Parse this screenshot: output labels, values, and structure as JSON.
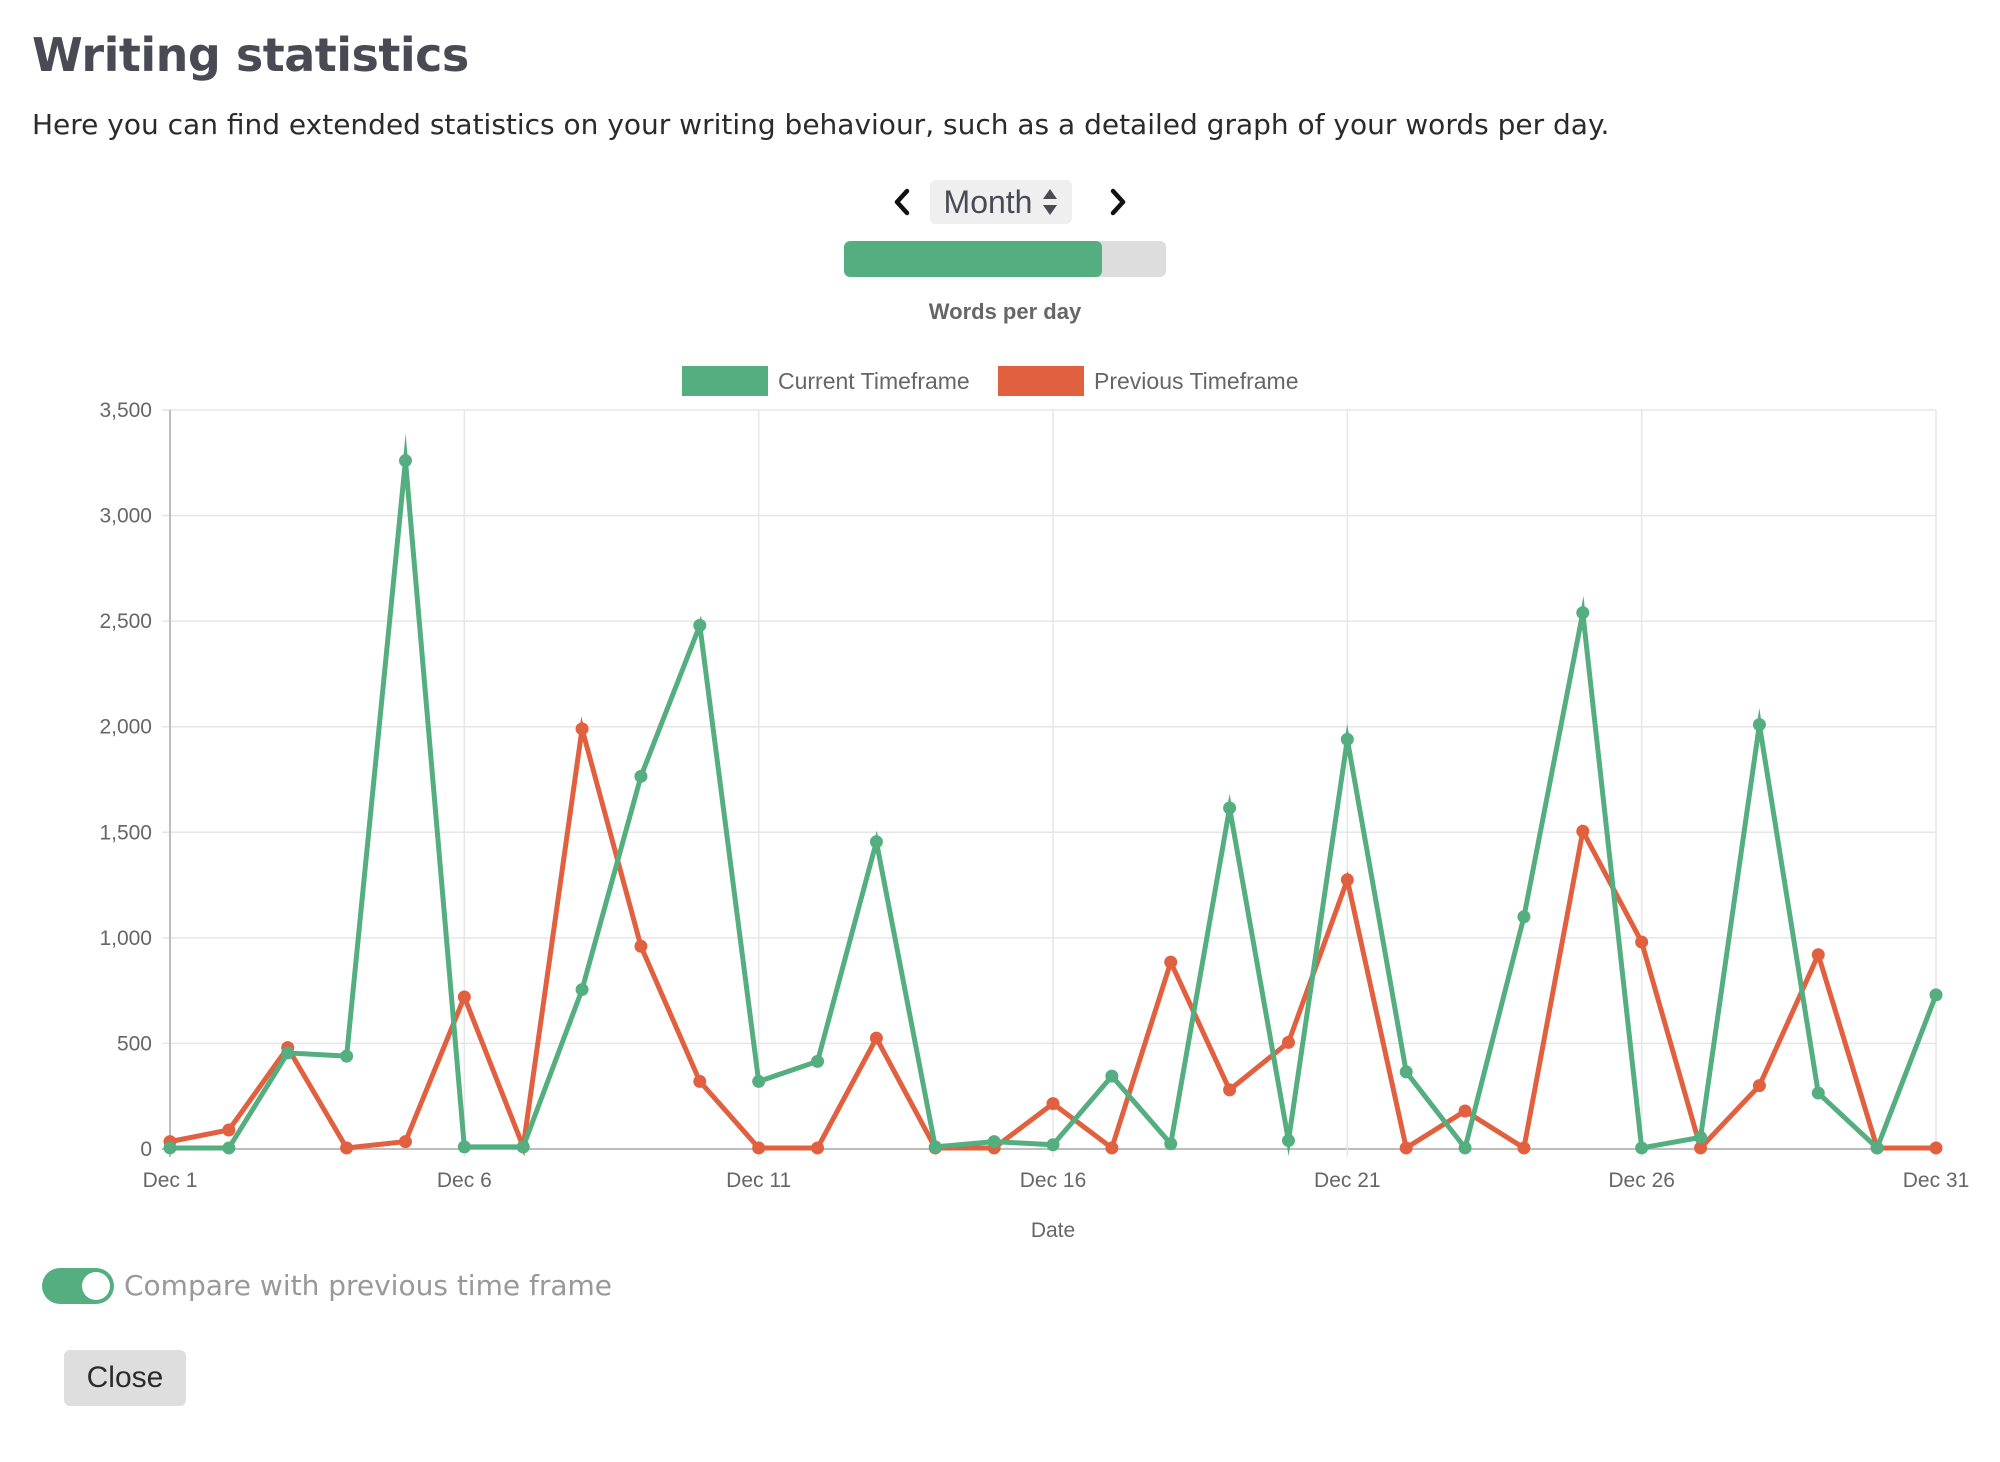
{
  "header": {
    "title": "Writing statistics",
    "description": "Here you can find extended statistics on your writing behaviour, such as a detailed graph of your words per day."
  },
  "timeframe": {
    "selected": "Month",
    "prev_icon": "chevron-left-icon",
    "next_icon": "chevron-right-icon",
    "sort_icon": "sort-arrows-icon"
  },
  "progress": {
    "fraction": 0.8
  },
  "chart_data": {
    "type": "line",
    "title": "Words per day",
    "xlabel": "Date",
    "ylabel": "",
    "x": [
      "Dec 1",
      "Dec 2",
      "Dec 3",
      "Dec 4",
      "Dec 5",
      "Dec 6",
      "Dec 7",
      "Dec 8",
      "Dec 9",
      "Dec 10",
      "Dec 11",
      "Dec 12",
      "Dec 13",
      "Dec 14",
      "Dec 15",
      "Dec 16",
      "Dec 17",
      "Dec 18",
      "Dec 19",
      "Dec 20",
      "Dec 21",
      "Dec 22",
      "Dec 23",
      "Dec 24",
      "Dec 25",
      "Dec 26",
      "Dec 27",
      "Dec 28",
      "Dec 29",
      "Dec 30",
      "Dec 31"
    ],
    "x_tick_labels": [
      "Dec 1",
      "Dec 6",
      "Dec 11",
      "Dec 16",
      "Dec 21",
      "Dec 26",
      "Dec 31"
    ],
    "ylim": [
      0,
      3500
    ],
    "y_ticks": [
      0,
      500,
      1000,
      1500,
      2000,
      2500,
      3000,
      3500
    ],
    "y_tick_labels": [
      "0",
      "500",
      "1,000",
      "1,500",
      "2,000",
      "2,500",
      "3,000",
      "3,500"
    ],
    "grid": true,
    "legend_position": "top-center",
    "series": [
      {
        "name": "Current Timeframe",
        "color": "#55ae7f",
        "values": [
          5,
          5,
          455,
          440,
          3260,
          10,
          10,
          755,
          1765,
          2480,
          320,
          415,
          1455,
          10,
          35,
          20,
          345,
          25,
          1615,
          40,
          1940,
          365,
          5,
          1100,
          2540,
          5,
          55,
          2010,
          265,
          5,
          730
        ]
      },
      {
        "name": "Previous Timeframe",
        "color": "#e06040",
        "values": [
          35,
          90,
          480,
          5,
          35,
          720,
          10,
          1990,
          960,
          320,
          5,
          5,
          525,
          5,
          5,
          215,
          5,
          885,
          280,
          505,
          1275,
          5,
          180,
          5,
          1505,
          980,
          5,
          300,
          920,
          5,
          5
        ]
      }
    ]
  },
  "compare": {
    "label": "Compare with previous time frame",
    "enabled": true
  },
  "close_label": "Close"
}
